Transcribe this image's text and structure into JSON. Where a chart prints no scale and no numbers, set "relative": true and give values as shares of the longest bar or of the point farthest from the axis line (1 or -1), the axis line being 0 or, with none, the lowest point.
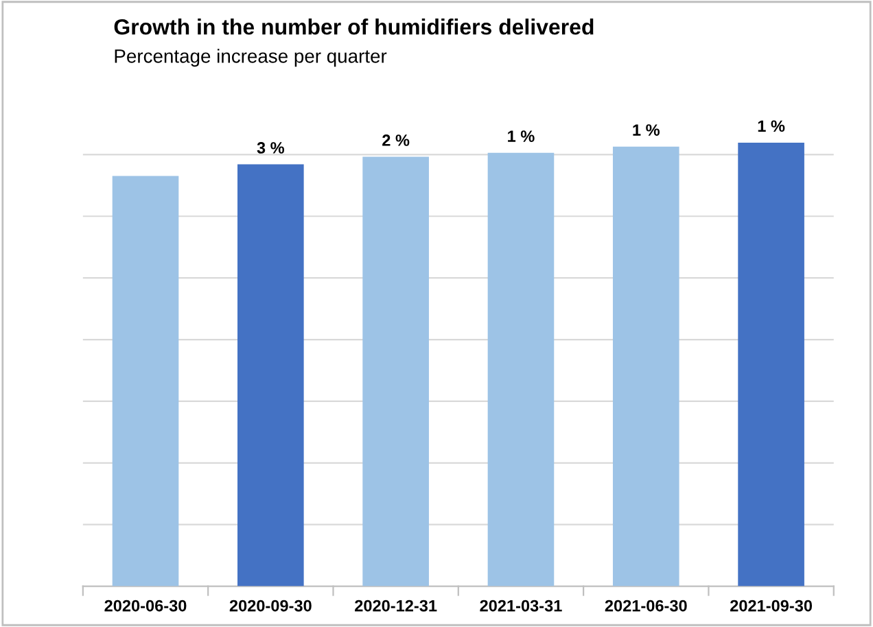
{
  "chart_data": {
    "type": "bar",
    "title": "Growth in the number of humidifiers delivered",
    "subtitle": "Percentage increase per quarter",
    "categories": [
      "2020-06-30",
      "2020-09-30",
      "2020-12-31",
      "2021-03-31",
      "2021-06-30",
      "2021-09-30"
    ],
    "values": [
      0.925,
      0.951,
      0.968,
      0.977,
      0.991,
      1.0
    ],
    "colors": [
      "#9dc3e6",
      "#4472c4",
      "#9dc3e6",
      "#9dc3e6",
      "#9dc3e6",
      "#4472c4"
    ],
    "annotations": [
      {
        "text": "3 %",
        "x": "2020-09-30",
        "y": 0.951
      },
      {
        "text": "2 %",
        "x": "2020-12-31",
        "y": 0.968
      },
      {
        "text": "1 %",
        "x": "2021-03-31",
        "y": 0.977
      },
      {
        "text": "1 %",
        "x": "2021-06-30",
        "y": 0.991
      },
      {
        "text": "1 %",
        "x": "2021-09-30",
        "y": 1.0
      }
    ],
    "relative": true,
    "grid": "y",
    "legend": false
  }
}
